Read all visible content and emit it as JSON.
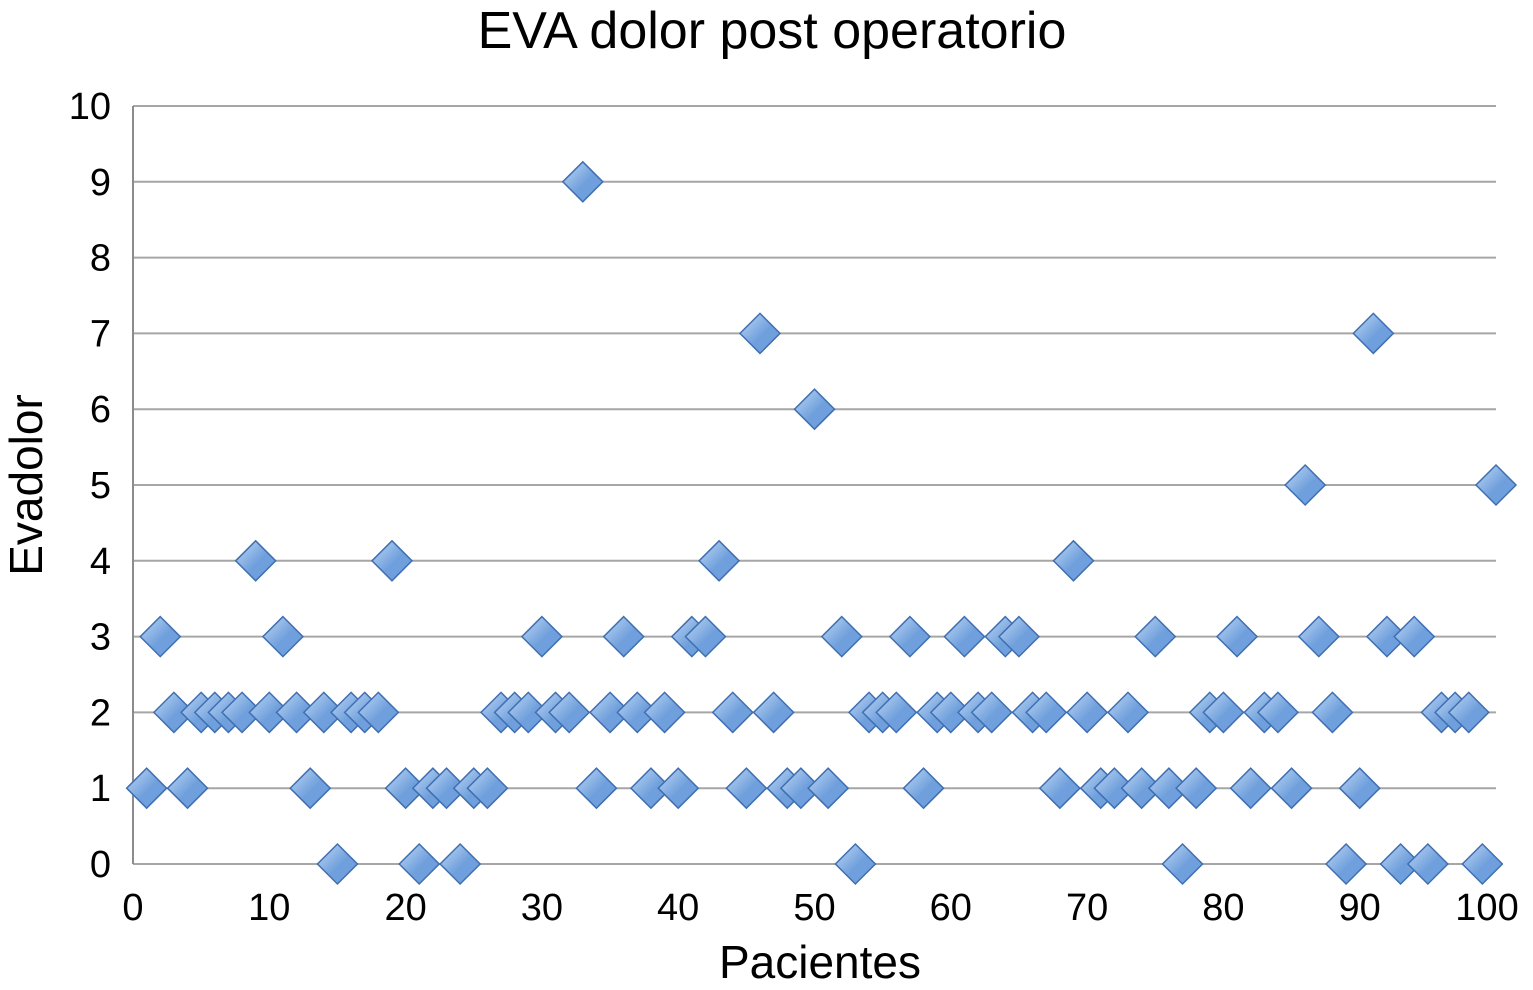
{
  "chart_data": {
    "type": "scatter",
    "title": "EVA dolor post operatorio",
    "xlabel": "Pacientes",
    "ylabel": "Evadolor",
    "xlim": [
      0,
      100
    ],
    "ylim": [
      0,
      10
    ],
    "xticks": [
      "0",
      "10",
      "20",
      "30",
      "40",
      "50",
      "60",
      "70",
      "80",
      "90",
      "100"
    ],
    "yticks": [
      "0",
      "1",
      "2",
      "3",
      "4",
      "5",
      "6",
      "7",
      "8",
      "9",
      "10"
    ],
    "grid": "horizontal",
    "legend": "none",
    "marker": "diamond",
    "colors": {
      "marker_fill": "#6f9fdc",
      "marker_light": "#c2daf6",
      "marker_edge": "#3f6fb0",
      "grid": "#a6a6a6"
    },
    "points": [
      {
        "x": 1,
        "y": 1
      },
      {
        "x": 2,
        "y": 3
      },
      {
        "x": 3,
        "y": 2
      },
      {
        "x": 4,
        "y": 1
      },
      {
        "x": 5,
        "y": 2
      },
      {
        "x": 6,
        "y": 2
      },
      {
        "x": 7,
        "y": 2
      },
      {
        "x": 8,
        "y": 2
      },
      {
        "x": 9,
        "y": 4
      },
      {
        "x": 10,
        "y": 2
      },
      {
        "x": 11,
        "y": 3
      },
      {
        "x": 12,
        "y": 2
      },
      {
        "x": 13,
        "y": 1
      },
      {
        "x": 14,
        "y": 2
      },
      {
        "x": 15,
        "y": 0
      },
      {
        "x": 16,
        "y": 2
      },
      {
        "x": 17,
        "y": 2
      },
      {
        "x": 18,
        "y": 2
      },
      {
        "x": 19,
        "y": 4
      },
      {
        "x": 20,
        "y": 1
      },
      {
        "x": 21,
        "y": 0
      },
      {
        "x": 22,
        "y": 1
      },
      {
        "x": 23,
        "y": 1
      },
      {
        "x": 24,
        "y": 0
      },
      {
        "x": 25,
        "y": 1
      },
      {
        "x": 26,
        "y": 1
      },
      {
        "x": 27,
        "y": 2
      },
      {
        "x": 28,
        "y": 2
      },
      {
        "x": 29,
        "y": 2
      },
      {
        "x": 30,
        "y": 3
      },
      {
        "x": 31,
        "y": 2
      },
      {
        "x": 32,
        "y": 2
      },
      {
        "x": 33,
        "y": 9
      },
      {
        "x": 34,
        "y": 1
      },
      {
        "x": 35,
        "y": 2
      },
      {
        "x": 36,
        "y": 3
      },
      {
        "x": 37,
        "y": 2
      },
      {
        "x": 38,
        "y": 1
      },
      {
        "x": 39,
        "y": 2
      },
      {
        "x": 40,
        "y": 1
      },
      {
        "x": 41,
        "y": 3
      },
      {
        "x": 42,
        "y": 3
      },
      {
        "x": 43,
        "y": 4
      },
      {
        "x": 44,
        "y": 2
      },
      {
        "x": 45,
        "y": 1
      },
      {
        "x": 46,
        "y": 7
      },
      {
        "x": 47,
        "y": 2
      },
      {
        "x": 48,
        "y": 1
      },
      {
        "x": 49,
        "y": 1
      },
      {
        "x": 50,
        "y": 6
      },
      {
        "x": 51,
        "y": 1
      },
      {
        "x": 52,
        "y": 3
      },
      {
        "x": 53,
        "y": 0
      },
      {
        "x": 54,
        "y": 2
      },
      {
        "x": 55,
        "y": 2
      },
      {
        "x": 56,
        "y": 2
      },
      {
        "x": 57,
        "y": 3
      },
      {
        "x": 58,
        "y": 1
      },
      {
        "x": 59,
        "y": 2
      },
      {
        "x": 60,
        "y": 2
      },
      {
        "x": 61,
        "y": 3
      },
      {
        "x": 62,
        "y": 2
      },
      {
        "x": 63,
        "y": 2
      },
      {
        "x": 64,
        "y": 3
      },
      {
        "x": 65,
        "y": 3
      },
      {
        "x": 66,
        "y": 2
      },
      {
        "x": 67,
        "y": 2
      },
      {
        "x": 68,
        "y": 1
      },
      {
        "x": 69,
        "y": 4
      },
      {
        "x": 70,
        "y": 2
      },
      {
        "x": 71,
        "y": 1
      },
      {
        "x": 72,
        "y": 1
      },
      {
        "x": 73,
        "y": 2
      },
      {
        "x": 74,
        "y": 1
      },
      {
        "x": 75,
        "y": 3
      },
      {
        "x": 76,
        "y": 1
      },
      {
        "x": 77,
        "y": 0
      },
      {
        "x": 78,
        "y": 1
      },
      {
        "x": 79,
        "y": 2
      },
      {
        "x": 80,
        "y": 2
      },
      {
        "x": 81,
        "y": 3
      },
      {
        "x": 82,
        "y": 1
      },
      {
        "x": 83,
        "y": 2
      },
      {
        "x": 84,
        "y": 2
      },
      {
        "x": 85,
        "y": 1
      },
      {
        "x": 86,
        "y": 5
      },
      {
        "x": 87,
        "y": 3
      },
      {
        "x": 88,
        "y": 2
      },
      {
        "x": 89,
        "y": 0
      },
      {
        "x": 90,
        "y": 1
      },
      {
        "x": 91,
        "y": 7
      },
      {
        "x": 92,
        "y": 3
      },
      {
        "x": 93,
        "y": 0
      },
      {
        "x": 94,
        "y": 3
      },
      {
        "x": 95,
        "y": 0
      },
      {
        "x": 96,
        "y": 2
      },
      {
        "x": 97,
        "y": 2
      },
      {
        "x": 98,
        "y": 2
      },
      {
        "x": 99,
        "y": 0
      },
      {
        "x": 100,
        "y": 5
      }
    ]
  }
}
